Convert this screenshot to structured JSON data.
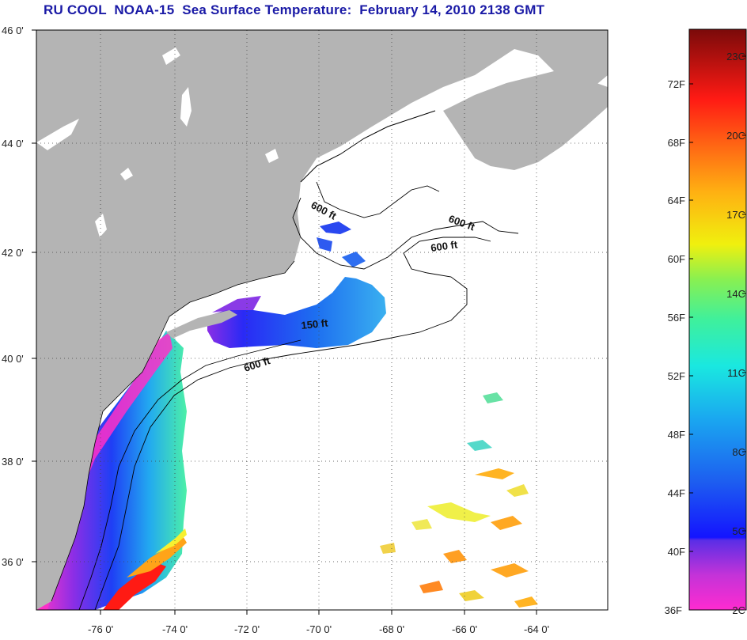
{
  "title": "RU COOL  NOAA-15  Sea Surface Temperature:  February 14, 2010 2138 GMT",
  "latitude_labels": [
    "46 0'",
    "44 0'",
    "42 0'",
    "40 0'",
    "38 0'",
    "36 0'"
  ],
  "longitude_labels": [
    "-76 0'",
    "-74 0'",
    "-72 0'",
    "-70 0'",
    "-68 0'",
    "-66 0'",
    "-64 0'"
  ],
  "contour_labels": [
    "600 ft",
    "600 ft",
    "600 ft",
    "150 ft",
    "600 ft"
  ],
  "colorbar": {
    "fahrenheit_labels": [
      "72F",
      "68F",
      "64F",
      "60F",
      "56F",
      "52F",
      "48F",
      "44F",
      "40F",
      "36F"
    ],
    "celsius_labels": [
      "23C",
      "20C",
      "17C",
      "14C",
      "11C",
      "8C",
      "5C",
      "2C"
    ]
  },
  "colors": {
    "title": "#1a1aa6",
    "land": "#b4b4b4",
    "ocean": "#ffffff"
  }
}
